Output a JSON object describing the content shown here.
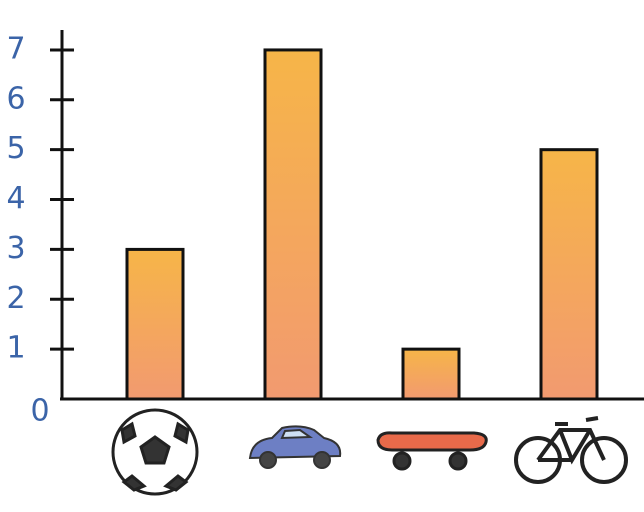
{
  "chart_data": {
    "type": "bar",
    "categories": [
      null,
      null,
      null,
      null
    ],
    "values": [
      3,
      7,
      1,
      5
    ],
    "color": "#f5ac55",
    "ylim": [
      0,
      7.4
    ],
    "yticks": [
      0,
      1,
      2,
      3,
      4,
      5,
      6,
      7
    ],
    "grid": false
  }
}
